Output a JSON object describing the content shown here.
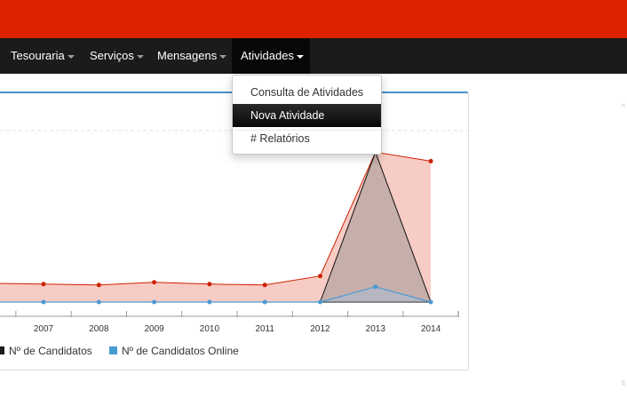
{
  "nav": {
    "items": [
      {
        "label": "Tesouraria"
      },
      {
        "label": "Serviços"
      },
      {
        "label": "Mensagens"
      },
      {
        "label": "Atividades"
      }
    ]
  },
  "dropdown": {
    "items": [
      {
        "label": "Consulta de Atividades"
      },
      {
        "label": "Nova Atividade"
      },
      {
        "label": "# Relatórios"
      }
    ]
  },
  "colors": {
    "topbar": "#dd2200",
    "navbar": "#1b1b1b",
    "candidatos": "#cc2200",
    "candidatos_fill": "#f4b6ad",
    "online": "#4a9ad4",
    "panel_accent": "#4a90c8"
  },
  "chart_data": {
    "type": "area",
    "categories": [
      "2007",
      "2008",
      "2009",
      "2010",
      "2011",
      "2012",
      "2013",
      "2014"
    ],
    "series": [
      {
        "name": "Nº de Candidatos",
        "values": [
          20,
          19,
          22,
          20,
          19,
          29,
          167,
          157
        ]
      },
      {
        "name": "Nº de Candidatos Online",
        "values": [
          0,
          0,
          0,
          0,
          0,
          0,
          17,
          0
        ]
      }
    ],
    "overlay": {
      "type": "triangle",
      "peak_category": "2013"
    },
    "ylim": [
      0,
      195
    ],
    "grid": true,
    "legend": "bottom-left"
  }
}
